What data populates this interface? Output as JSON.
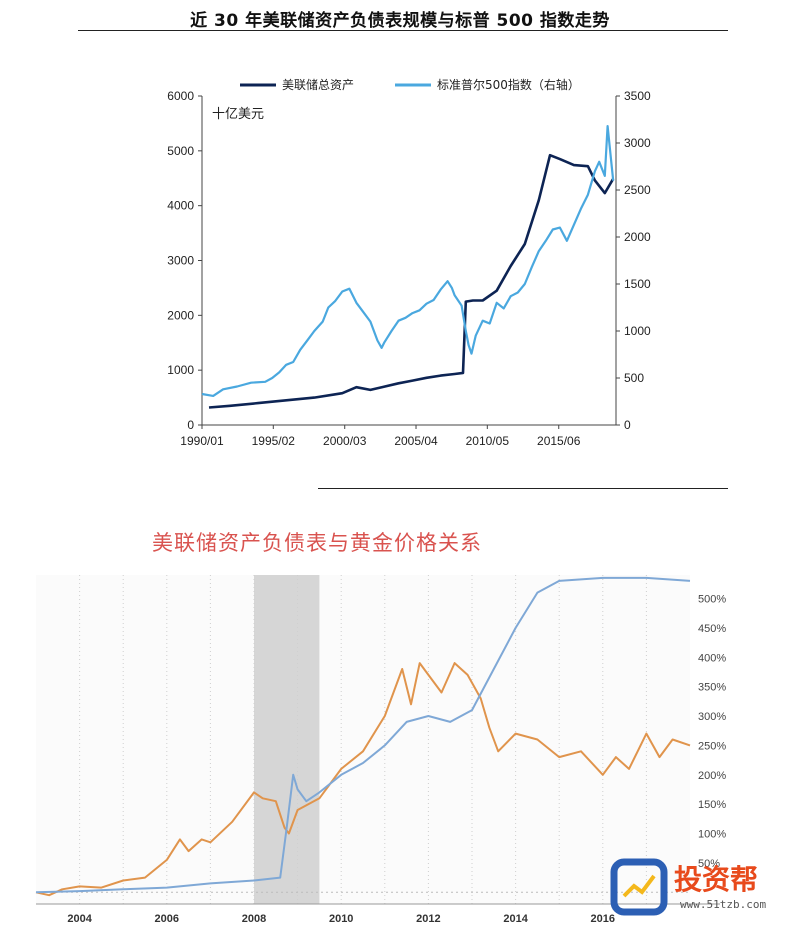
{
  "headline": "近 30 年美联储资产负债表规模与标普 500 指数走势",
  "chart_data": [
    {
      "type": "line",
      "legend": [
        "美联储总资产",
        "标准普尔500指数（右轴）"
      ],
      "unit_label": "十亿美元",
      "x_tick_labels": [
        "1990/01",
        "1995/02",
        "2000/03",
        "2005/04",
        "2010/05",
        "2015/06"
      ],
      "y_left_ticks": [
        0,
        1000,
        2000,
        3000,
        4000,
        5000,
        6000
      ],
      "y_right_ticks": [
        0,
        500,
        1000,
        1500,
        2000,
        2500,
        3000,
        3500
      ],
      "ylim_left": [
        0,
        6000
      ],
      "ylim_right": [
        0,
        3500
      ],
      "series": [
        {
          "name": "美联储总资产",
          "axis": "left",
          "color": "#0d2454",
          "x": [
            1990.5,
            1992.0,
            1994.0,
            1996.0,
            1998.0,
            1999.5,
            2000.0,
            2001.0,
            2002.0,
            2003.0,
            2004.0,
            2005.0,
            2006.0,
            2007.0,
            2008.0,
            2008.6,
            2008.8,
            2009.3,
            2010.0,
            2011.0,
            2012.0,
            2013.0,
            2014.0,
            2014.8,
            2015.5,
            2016.5,
            2017.5,
            2018.0,
            2018.7,
            2019.3
          ],
          "y": [
            320,
            350,
            400,
            450,
            500,
            560,
            580,
            690,
            640,
            700,
            760,
            810,
            860,
            900,
            930,
            950,
            2250,
            2270,
            2270,
            2450,
            2900,
            3300,
            4100,
            4920,
            4850,
            4740,
            4720,
            4460,
            4230,
            4490
          ]
        },
        {
          "name": "标准普尔500指数（右轴）",
          "axis": "right",
          "color": "#4aa8df",
          "x": [
            1990.0,
            1990.8,
            1991.5,
            1992.5,
            1993.5,
            1994.5,
            1995.0,
            1995.5,
            1996.0,
            1996.5,
            1997.0,
            1997.5,
            1998.0,
            1998.6,
            1999.0,
            1999.5,
            2000.0,
            2000.5,
            2001.0,
            2001.5,
            2002.0,
            2002.5,
            2002.8,
            2003.0,
            2003.5,
            2004.0,
            2004.5,
            2005.0,
            2005.5,
            2006.0,
            2006.5,
            2007.0,
            2007.5,
            2007.8,
            2008.0,
            2008.5,
            2008.8,
            2009.0,
            2009.2,
            2009.5,
            2010.0,
            2010.5,
            2011.0,
            2011.5,
            2012.0,
            2012.5,
            2013.0,
            2013.5,
            2014.0,
            2014.5,
            2015.0,
            2015.5,
            2016.0,
            2016.5,
            2017.0,
            2017.5,
            2018.0,
            2018.3,
            2018.7,
            2018.9,
            2019.3
          ],
          "y": [
            330,
            310,
            380,
            410,
            450,
            460,
            500,
            560,
            640,
            670,
            800,
            900,
            1000,
            1100,
            1250,
            1320,
            1420,
            1450,
            1300,
            1200,
            1100,
            900,
            820,
            880,
            1000,
            1110,
            1140,
            1190,
            1220,
            1290,
            1330,
            1440,
            1530,
            1460,
            1380,
            1270,
            1000,
            850,
            760,
            950,
            1110,
            1080,
            1300,
            1240,
            1370,
            1410,
            1500,
            1680,
            1850,
            1960,
            2080,
            2100,
            1960,
            2130,
            2300,
            2450,
            2700,
            2800,
            2650,
            3180,
            2600
          ]
        }
      ]
    },
    {
      "type": "line",
      "title": "美联储资产负债表与黄金价格关系",
      "x_tick_labels": [
        "2004",
        "2006",
        "2008",
        "2010",
        "2012",
        "2014",
        "2016"
      ],
      "y_ticks": [
        "50%",
        "100%",
        "150%",
        "200%",
        "250%",
        "300%",
        "350%",
        "400%",
        "450%",
        "500%"
      ],
      "ylim": [
        -20,
        540
      ],
      "shaded_period": [
        2008.0,
        2009.5
      ],
      "series": [
        {
          "name": "",
          "color": "#e0944c",
          "x": [
            2003.0,
            2003.3,
            2003.6,
            2004.0,
            2004.5,
            2005.0,
            2005.5,
            2006.0,
            2006.3,
            2006.5,
            2006.8,
            2007.0,
            2007.5,
            2008.0,
            2008.2,
            2008.5,
            2008.7,
            2008.8,
            2009.0,
            2009.5,
            2010.0,
            2010.5,
            2011.0,
            2011.4,
            2011.6,
            2011.8,
            2012.0,
            2012.3,
            2012.6,
            2012.9,
            2013.2,
            2013.4,
            2013.6,
            2014.0,
            2014.5,
            2015.0,
            2015.5,
            2016.0,
            2016.3,
            2016.6,
            2017.0,
            2017.3,
            2017.6,
            2018.0
          ],
          "y": [
            0,
            -5,
            5,
            10,
            8,
            20,
            25,
            55,
            90,
            70,
            90,
            85,
            120,
            170,
            160,
            155,
            110,
            100,
            140,
            160,
            210,
            240,
            300,
            380,
            320,
            390,
            370,
            340,
            390,
            370,
            330,
            280,
            240,
            270,
            260,
            230,
            240,
            200,
            230,
            210,
            270,
            230,
            260,
            250
          ]
        },
        {
          "name": "",
          "color": "#7fa8d6",
          "x": [
            2003.0,
            2004.0,
            2005.0,
            2006.0,
            2007.0,
            2008.0,
            2008.6,
            2008.75,
            2008.9,
            2009.0,
            2009.2,
            2009.5,
            2010.0,
            2010.5,
            2011.0,
            2011.5,
            2012.0,
            2012.5,
            2013.0,
            2013.5,
            2014.0,
            2014.5,
            2015.0,
            2016.0,
            2017.0,
            2018.0
          ],
          "y": [
            0,
            2,
            5,
            8,
            15,
            20,
            25,
            110,
            200,
            175,
            155,
            170,
            200,
            220,
            250,
            290,
            300,
            290,
            310,
            380,
            450,
            510,
            530,
            535,
            535,
            530
          ]
        }
      ]
    }
  ],
  "watermark": {
    "brand": "投资帮",
    "url": "www.51tzb.com",
    "logo_colors": [
      "#2c5fb4",
      "#f4b81c",
      "#e84a1c"
    ]
  }
}
